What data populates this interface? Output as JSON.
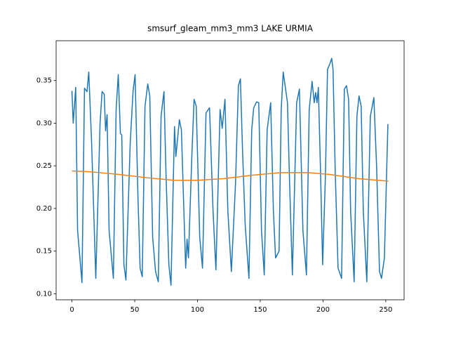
{
  "chart_data": {
    "type": "line",
    "title": "smsurf_gleam_mm3_mm3 LAKE URMIA",
    "xlim": [
      -12.6,
      264.6
    ],
    "ylim": [
      0.0929,
      0.3967
    ],
    "xticks": [
      0,
      50,
      100,
      150,
      200,
      250
    ],
    "yticks": [
      {
        "value": 0.1,
        "label": "0.10"
      },
      0.15,
      {
        "value": 0.2,
        "label": "0.20"
      },
      0.25,
      {
        "value": 0.3,
        "label": "0.30"
      },
      0.35
    ],
    "series": [
      {
        "color": "#1f77b4",
        "x": [
          0,
          1,
          3,
          4.5,
          8,
          10,
          12,
          13.4,
          15.7,
          19,
          22.4,
          24,
          25.7,
          26.8,
          28,
          29.6,
          33,
          35.2,
          36.9,
          38.6,
          39.7,
          41.4,
          43,
          46.4,
          48.7,
          50.3,
          52.6,
          54.3,
          56,
          58.2,
          60.4,
          62,
          64.3,
          66.6,
          68.8,
          71,
          73.3,
          75,
          77.2,
          78.9,
          81.7,
          82.8,
          85.6,
          87.2,
          89,
          90.6,
          91.7,
          92.8,
          95.6,
          97.3,
          99,
          101.8,
          104,
          106.8,
          109.6,
          112.4,
          114.7,
          118,
          119.7,
          121.9,
          124.2,
          127,
          130.3,
          132.6,
          134.2,
          135.9,
          138,
          141,
          143.2,
          144.8,
          147.1,
          148.8,
          151,
          153.2,
          155.5,
          158.3,
          160.5,
          162.2,
          165,
          166.7,
          168.3,
          171.7,
          173.4,
          175.6,
          179,
          181.2,
          184,
          186.8,
          189,
          191.3,
          193,
          194.1,
          195.2,
          196.3,
          198,
          199.7,
          201.9,
          203.6,
          205.8,
          206.9,
          208,
          209.7,
          212,
          214.8,
          217,
          218.7,
          220.4,
          222,
          224.8,
          227,
          228.7,
          230.4,
          232.1,
          234.9,
          237.7,
          240.5,
          242.7,
          245,
          246.6,
          248.9,
          251.7
        ],
        "values": [
          0.338,
          0.3,
          0.342,
          0.174,
          0.113,
          0.341,
          0.337,
          0.36,
          0.276,
          0.118,
          0.3,
          0.337,
          0.334,
          0.291,
          0.31,
          0.174,
          0.118,
          0.316,
          0.357,
          0.288,
          0.286,
          0.134,
          0.116,
          0.276,
          0.338,
          0.357,
          0.213,
          0.13,
          0.12,
          0.32,
          0.346,
          0.332,
          0.166,
          0.126,
          0.114,
          0.308,
          0.337,
          0.237,
          0.134,
          0.11,
          0.296,
          0.261,
          0.304,
          0.292,
          0.205,
          0.13,
          0.164,
          0.142,
          0.265,
          0.328,
          0.32,
          0.166,
          0.13,
          0.312,
          0.318,
          0.197,
          0.128,
          0.316,
          0.294,
          0.328,
          0.197,
          0.126,
          0.229,
          0.344,
          0.352,
          0.268,
          0.181,
          0.118,
          0.292,
          0.318,
          0.325,
          0.324,
          0.174,
          0.122,
          0.292,
          0.324,
          0.197,
          0.142,
          0.15,
          0.316,
          0.36,
          0.324,
          0.229,
          0.122,
          0.324,
          0.34,
          0.174,
          0.122,
          0.316,
          0.349,
          0.324,
          0.336,
          0.324,
          0.342,
          0.245,
          0.134,
          0.237,
          0.363,
          0.371,
          0.376,
          0.363,
          0.245,
          0.13,
          0.118,
          0.34,
          0.344,
          0.328,
          0.197,
          0.114,
          0.308,
          0.332,
          0.32,
          0.197,
          0.114,
          0.308,
          0.33,
          0.249,
          0.126,
          0.118,
          0.142,
          0.299
        ]
      },
      {
        "color": "#ff7f0e",
        "x": [
          0,
          15,
          37,
          60,
          82,
          99,
          121,
          144,
          166,
          188,
          205,
          228,
          252
        ],
        "values": [
          0.244,
          0.243,
          0.24,
          0.236,
          0.233,
          0.233,
          0.235,
          0.239,
          0.242,
          0.242,
          0.24,
          0.235,
          0.232
        ]
      }
    ]
  }
}
